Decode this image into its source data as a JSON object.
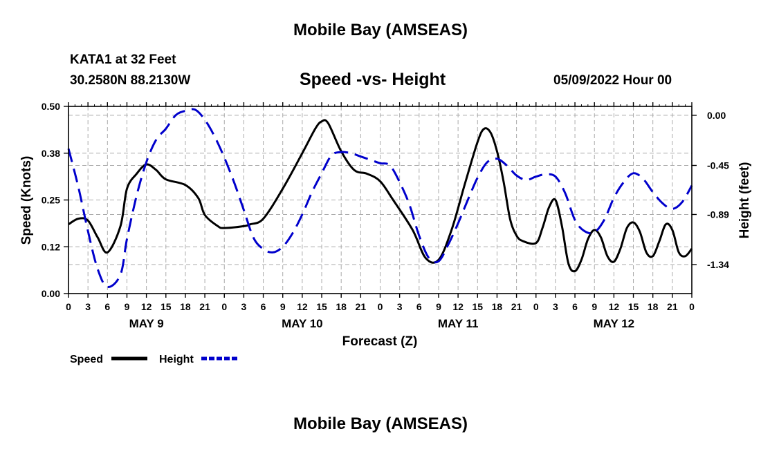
{
  "header": {
    "title": "Mobile Bay (AMSEAS)",
    "station": "KATA1 at 32 Feet",
    "coords": "30.2580N  88.2130W",
    "subtitle": "Speed -vs- Height",
    "datetime": "05/09/2022 Hour 00"
  },
  "footer": {
    "title": "Mobile Bay (AMSEAS)"
  },
  "chart_data": {
    "type": "line",
    "title": "Speed -vs- Height",
    "xlabel": "Forecast (Z)",
    "ylabel_left": "Speed (Knots)",
    "ylabel_right": "Height (feet)",
    "x_range_hours": [
      0,
      96
    ],
    "x_tick_labels": [
      "0",
      "3",
      "6",
      "9",
      "12",
      "15",
      "18",
      "21",
      "0",
      "3",
      "6",
      "9",
      "12",
      "15",
      "18",
      "21",
      "0",
      "3",
      "6",
      "9",
      "12",
      "15",
      "18",
      "21",
      "0",
      "3",
      "6",
      "9",
      "12",
      "15",
      "18",
      "21",
      "0"
    ],
    "day_labels": [
      {
        "label": "MAY 9",
        "hour": 12
      },
      {
        "label": "MAY 10",
        "hour": 36
      },
      {
        "label": "MAY 11",
        "hour": 60
      },
      {
        "label": "MAY 12",
        "hour": 84
      }
    ],
    "y_left": {
      "min": 0,
      "max": 0.5,
      "ticks": [
        0.0,
        0.125,
        0.25,
        0.375,
        0.5
      ],
      "tick_labels": [
        "0.00",
        "0.12",
        "0.25",
        "0.38",
        "0.50"
      ]
    },
    "y_right": {
      "min": -1.6,
      "max": 0.08,
      "ticks": [
        0.0,
        -0.45,
        -0.89,
        -1.34
      ],
      "tick_labels": [
        "0.00",
        "-0.45",
        "-0.89",
        "-1.34"
      ]
    },
    "grid": true,
    "legend": [
      {
        "name": "Speed",
        "color": "#000000",
        "style": "solid"
      },
      {
        "name": "Height",
        "color": "#0000cc",
        "style": "dashed"
      }
    ],
    "series": [
      {
        "name": "Speed",
        "axis": "left",
        "color": "#000000",
        "dash": "none",
        "x": [
          0,
          1.5,
          3,
          4.5,
          6,
          8,
          9,
          10.5,
          12,
          13.5,
          15,
          18,
          20,
          21,
          23,
          24,
          27,
          28,
          30,
          33,
          36,
          38,
          39,
          40,
          42,
          44,
          46,
          48,
          50,
          53,
          55,
          57,
          59,
          61,
          63,
          64,
          65,
          66,
          67,
          68,
          69,
          70,
          72,
          73,
          74,
          75,
          76,
          77,
          78,
          79,
          80,
          81,
          82,
          83,
          84,
          85,
          86,
          87,
          88,
          89,
          90,
          91,
          92,
          93,
          94,
          95,
          96
        ],
        "y": [
          0.185,
          0.2,
          0.195,
          0.15,
          0.11,
          0.18,
          0.28,
          0.32,
          0.345,
          0.33,
          0.305,
          0.29,
          0.255,
          0.21,
          0.18,
          0.175,
          0.18,
          0.185,
          0.2,
          0.28,
          0.375,
          0.44,
          0.46,
          0.455,
          0.38,
          0.33,
          0.32,
          0.3,
          0.25,
          0.17,
          0.095,
          0.09,
          0.17,
          0.29,
          0.405,
          0.44,
          0.43,
          0.38,
          0.3,
          0.2,
          0.155,
          0.14,
          0.135,
          0.175,
          0.23,
          0.25,
          0.18,
          0.08,
          0.06,
          0.09,
          0.145,
          0.17,
          0.15,
          0.1,
          0.085,
          0.12,
          0.175,
          0.19,
          0.165,
          0.11,
          0.1,
          0.14,
          0.185,
          0.17,
          0.11,
          0.1,
          0.12
        ]
      },
      {
        "name": "Height",
        "axis": "right",
        "color": "#0000cc",
        "dash": "20,10",
        "x": [
          0,
          1.5,
          3,
          4.5,
          6,
          8,
          9,
          10.5,
          12,
          13.5,
          15,
          16.5,
          18,
          19.5,
          21,
          22.5,
          24,
          25.5,
          27,
          28.5,
          30,
          31.5,
          33,
          34.5,
          36,
          37.5,
          39,
          40.5,
          42,
          43.5,
          45,
          46.5,
          48,
          49.5,
          51,
          52.5,
          54,
          55.5,
          57,
          58.5,
          60,
          61.5,
          63,
          64.5,
          66,
          67.5,
          69,
          70.5,
          72,
          73.5,
          75,
          76.5,
          78,
          79.5,
          81,
          82.5,
          84,
          85.5,
          87,
          88.5,
          90,
          91.5,
          93,
          94.5,
          96
        ],
        "y": [
          -0.3,
          -0.64,
          -1.04,
          -1.38,
          -1.54,
          -1.43,
          -1.11,
          -0.72,
          -0.42,
          -0.22,
          -0.12,
          0.0,
          0.04,
          0.05,
          -0.04,
          -0.19,
          -0.38,
          -0.6,
          -0.85,
          -1.1,
          -1.2,
          -1.23,
          -1.18,
          -1.06,
          -0.89,
          -0.69,
          -0.52,
          -0.36,
          -0.33,
          -0.34,
          -0.37,
          -0.4,
          -0.43,
          -0.45,
          -0.6,
          -0.8,
          -1.08,
          -1.28,
          -1.31,
          -1.16,
          -0.97,
          -0.76,
          -0.56,
          -0.42,
          -0.39,
          -0.45,
          -0.54,
          -0.58,
          -0.55,
          -0.53,
          -0.55,
          -0.7,
          -0.94,
          -1.04,
          -1.05,
          -0.94,
          -0.74,
          -0.6,
          -0.52,
          -0.57,
          -0.69,
          -0.79,
          -0.84,
          -0.78,
          -0.63
        ]
      }
    ]
  }
}
